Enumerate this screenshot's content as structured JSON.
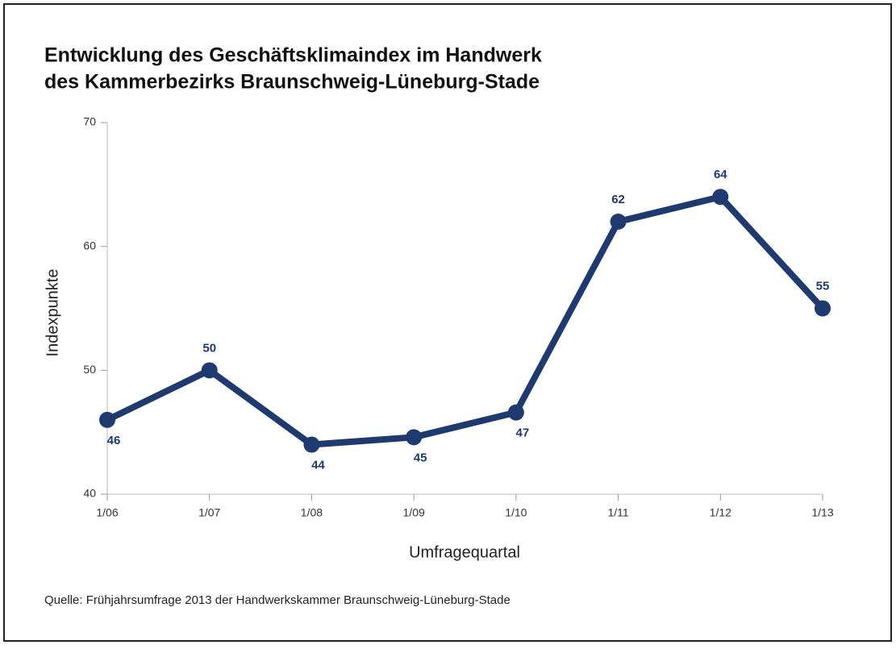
{
  "chart_data": {
    "type": "line",
    "title": [
      "Entwicklung des Geschäftsklimaindex im Handwerk",
      "des Kammerbezirks Braunschweig-Lüneburg-Stade"
    ],
    "y_label": "Indexpunkte",
    "x_label": "Umfragequartal",
    "source": "Quelle: Frühjahrsumfrage 2013 der Handwerkskammer Braunschweig-Lüneburg-Stade",
    "categories": [
      "1/06",
      "1/07",
      "1/08",
      "1/09",
      "1/10",
      "1/11",
      "1/12",
      "1/13"
    ],
    "values": [
      46,
      50,
      44,
      44.6,
      46.6,
      62,
      64,
      55
    ],
    "value_labels": [
      "46",
      "50",
      "44",
      "45",
      "47",
      "62",
      "64",
      "55"
    ],
    "color": "#1f3a6e",
    "ylim": [
      40,
      70
    ],
    "yticks": [
      40,
      50,
      60,
      70
    ],
    "grid": false
  }
}
